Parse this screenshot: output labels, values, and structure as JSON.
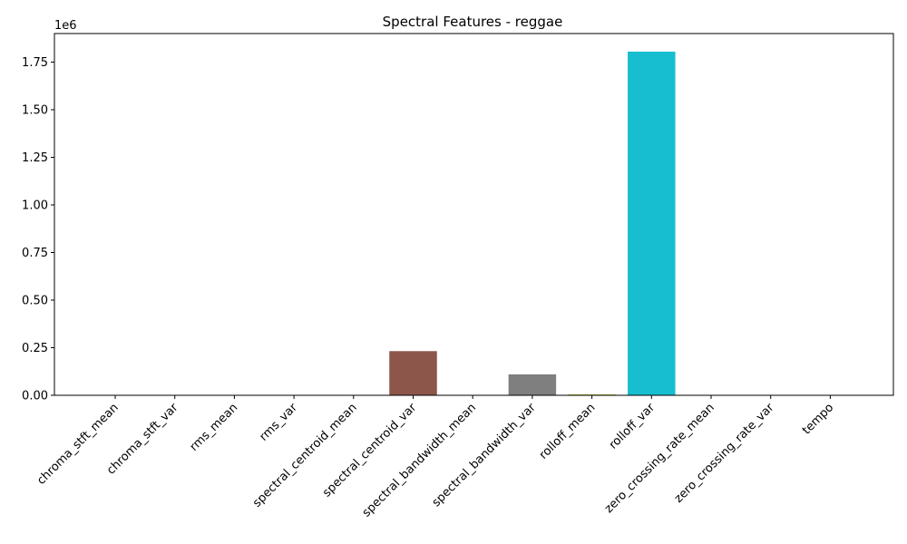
{
  "chart_data": {
    "type": "bar",
    "title": "Spectral Features - reggae",
    "xlabel": "",
    "ylabel": "",
    "y_scale_label": "1e6",
    "ylim": [
      0,
      1.9
    ],
    "y_ticks": [
      "0.00",
      "0.25",
      "0.50",
      "0.75",
      "1.00",
      "1.25",
      "1.50",
      "1.75"
    ],
    "y_tick_values": [
      0,
      0.25,
      0.5,
      0.75,
      1.0,
      1.25,
      1.5,
      1.75
    ],
    "categories": [
      "chroma_stft_mean",
      "chroma_stft_var",
      "rms_mean",
      "rms_var",
      "spectral_centroid_mean",
      "spectral_centroid_var",
      "spectral_bandwidth_mean",
      "spectral_bandwidth_var",
      "rolloff_mean",
      "rolloff_var",
      "zero_crossing_rate_mean",
      "zero_crossing_rate_var",
      "tempo"
    ],
    "values": [
      4e-07,
      1e-07,
      1e-07,
      0.0,
      0.0022,
      0.232,
      0.0021,
      0.11,
      0.0046,
      1.805,
      0.0,
      0.0,
      0.0001
    ],
    "colors": [
      "#1f77b4",
      "#ff7f0e",
      "#2ca02c",
      "#d62728",
      "#9467bd",
      "#8c564b",
      "#e377c2",
      "#7f7f7f",
      "#bcbd22",
      "#17becf",
      "#1f77b4",
      "#ff7f0e",
      "#2ca02c"
    ],
    "grid": false,
    "legend": "none"
  }
}
